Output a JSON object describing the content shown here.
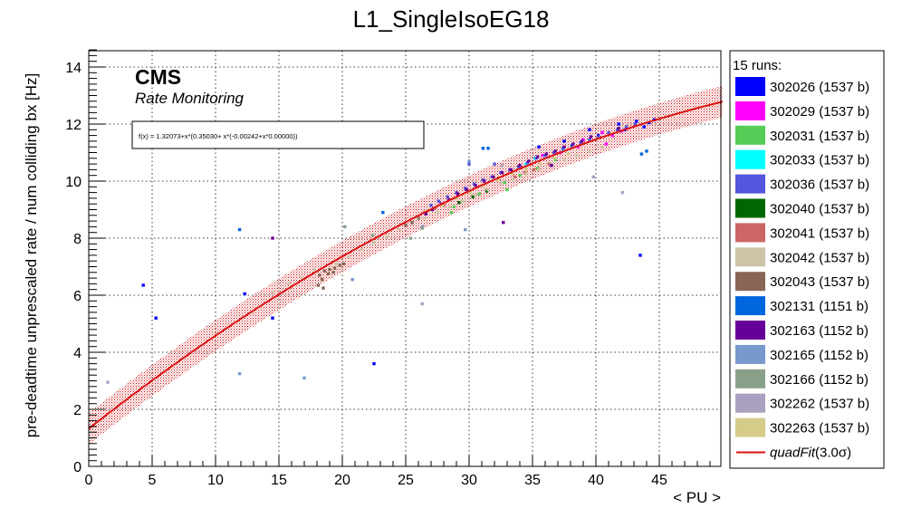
{
  "chart_data": {
    "type": "scatter",
    "title": "L1_SingleIsoEG18",
    "xlabel": "< PU >",
    "ylabel": "pre-deadtime unprescaled rate / num colliding bx [Hz]",
    "xlim": [
      0,
      50
    ],
    "ylim": [
      0,
      14.8
    ],
    "x_ticks": [
      0,
      5,
      10,
      15,
      20,
      25,
      30,
      35,
      40,
      45
    ],
    "y_ticks": [
      0,
      2,
      4,
      6,
      8,
      10,
      12,
      14
    ],
    "x_tick_labels": [
      "0",
      "5",
      "10",
      "15",
      "20",
      "25",
      "30",
      "35",
      "40",
      "45"
    ],
    "y_tick_labels": [
      "0",
      "2",
      "4",
      "6",
      "8",
      "10",
      "12",
      "14"
    ],
    "grid": true,
    "legend_position": "right",
    "annotations": {
      "cms": "CMS",
      "subtitle": "Rate Monitoring",
      "formula": "f(x) = 1.32073+x*(0.35030+ x*(-0.00242+x*0.00000))"
    },
    "legend_header": "15 runs:",
    "fit": {
      "name": "quadFit",
      "label_suffix": "(3.0σ)",
      "color": "#dd1111",
      "coefficients": [
        1.32073,
        0.3503,
        -0.00242
      ],
      "x_range": [
        0,
        50
      ],
      "band_sigma_width": 0.55
    },
    "series": [
      {
        "name": "302026 (1537 b)",
        "color": "#0000ff",
        "points": [
          [
            4.3,
            6.35
          ],
          [
            5.3,
            5.2
          ],
          [
            12.3,
            6.05
          ],
          [
            14.5,
            5.2
          ],
          [
            22.5,
            3.6
          ],
          [
            35.5,
            11.2
          ],
          [
            40.2,
            11.6
          ],
          [
            41.8,
            12.0
          ],
          [
            42.3,
            11.8
          ],
          [
            43.2,
            12.1
          ],
          [
            43.8,
            11.9
          ],
          [
            44.2,
            12.05
          ],
          [
            44.6,
            12.15
          ],
          [
            43.5,
            7.4
          ],
          [
            37.5,
            11.4
          ],
          [
            39.5,
            11.8
          ]
        ]
      },
      {
        "name": "302029 (1537 b)",
        "color": "#ff00ff",
        "points": [
          [
            38.6,
            11.2
          ],
          [
            39.6,
            11.55
          ],
          [
            40.5,
            11.7
          ],
          [
            41.3,
            11.6
          ],
          [
            42.0,
            11.75
          ],
          [
            40.8,
            11.3
          ],
          [
            39.0,
            11.45
          ],
          [
            37.2,
            11.0
          ],
          [
            35.8,
            10.9
          ]
        ]
      },
      {
        "name": "302031 (1537 b)",
        "color": "#55cc55",
        "points": [
          [
            28.8,
            9.1
          ],
          [
            29.5,
            9.3
          ],
          [
            30.8,
            9.55
          ],
          [
            32.8,
            9.95
          ],
          [
            34.0,
            10.2
          ],
          [
            35.4,
            10.45
          ],
          [
            36.8,
            10.75
          ],
          [
            33.0,
            9.7
          ],
          [
            28.6,
            8.9
          ]
        ]
      },
      {
        "name": "302033 (1537 b)",
        "color": "#00ffff",
        "points": [
          [
            34.5,
            10.6
          ],
          [
            35.2,
            10.8
          ],
          [
            36.0,
            10.9
          ],
          [
            37.4,
            11.1
          ],
          [
            38.1,
            11.25
          ]
        ]
      },
      {
        "name": "302036 (1537 b)",
        "color": "#5555dd",
        "points": [
          [
            27.0,
            9.15
          ],
          [
            27.6,
            9.3
          ],
          [
            28.3,
            9.45
          ],
          [
            29.0,
            9.6
          ],
          [
            29.7,
            9.75
          ],
          [
            30.4,
            9.9
          ],
          [
            31.1,
            10.05
          ],
          [
            31.8,
            10.15
          ],
          [
            32.5,
            10.3
          ],
          [
            33.2,
            10.4
          ],
          [
            33.9,
            10.5
          ],
          [
            34.6,
            10.65
          ],
          [
            35.3,
            10.8
          ],
          [
            36.0,
            10.9
          ],
          [
            36.7,
            11.0
          ],
          [
            37.4,
            11.15
          ],
          [
            38.1,
            11.25
          ],
          [
            38.8,
            11.35
          ],
          [
            39.5,
            11.45
          ],
          [
            40.2,
            11.55
          ],
          [
            41.0,
            11.7
          ],
          [
            41.7,
            11.8
          ],
          [
            42.4,
            11.9
          ],
          [
            43.1,
            12.0
          ],
          [
            30.0,
            10.6
          ],
          [
            32.0,
            10.6
          ]
        ]
      },
      {
        "name": "302040 (1537 b)",
        "color": "#006600",
        "points": [
          [
            29.2,
            9.25
          ],
          [
            30.3,
            9.45
          ],
          [
            31.4,
            9.65
          ]
        ]
      },
      {
        "name": "302041 (1537 b)",
        "color": "#cc6666",
        "points": [
          [
            26.5,
            8.9
          ],
          [
            27.3,
            9.05
          ],
          [
            28.0,
            9.15
          ],
          [
            33.6,
            10.15
          ],
          [
            34.4,
            10.3
          ],
          [
            35.1,
            10.4
          ],
          [
            36.3,
            10.6
          ]
        ]
      },
      {
        "name": "302042 (1537 b)",
        "color": "#ccc4a6",
        "points": [
          [
            19.5,
            7.1
          ],
          [
            20.5,
            7.35
          ],
          [
            21.5,
            7.6
          ],
          [
            22.5,
            7.85
          ],
          [
            23.5,
            8.05
          ],
          [
            24.5,
            8.3
          ],
          [
            25.5,
            8.5
          ],
          [
            26.5,
            8.7
          ],
          [
            27.5,
            8.9
          ],
          [
            28.5,
            9.1
          ],
          [
            29.5,
            9.3
          ],
          [
            30.5,
            9.5
          ],
          [
            31.5,
            9.7
          ],
          [
            32.5,
            9.9
          ],
          [
            33.5,
            10.05
          ],
          [
            34.5,
            10.25
          ],
          [
            35.5,
            10.4
          ],
          [
            36.5,
            10.6
          ],
          [
            37.5,
            10.75
          ],
          [
            38.5,
            10.9
          ],
          [
            39.5,
            11.05
          ],
          [
            40.5,
            11.2
          ],
          [
            14.5,
            6.1
          ],
          [
            15.8,
            6.4
          ],
          [
            16.8,
            6.6
          ],
          [
            17.8,
            6.9
          ]
        ]
      },
      {
        "name": "302043 (1537 b)",
        "color": "#886655",
        "points": [
          [
            18.2,
            6.7
          ],
          [
            18.6,
            6.85
          ],
          [
            19.0,
            6.9
          ],
          [
            19.4,
            6.95
          ],
          [
            19.8,
            7.05
          ],
          [
            18.4,
            6.55
          ],
          [
            18.9,
            6.75
          ],
          [
            19.3,
            6.8
          ],
          [
            18.1,
            6.35
          ],
          [
            18.5,
            6.25
          ],
          [
            20.1,
            7.1
          ],
          [
            25.0,
            8.45
          ],
          [
            25.5,
            8.55
          ],
          [
            26.0,
            8.7
          ]
        ]
      },
      {
        "name": "302131 (1151 b)",
        "color": "#0066dd",
        "points": [
          [
            11.9,
            8.3
          ],
          [
            23.2,
            8.9
          ],
          [
            31.1,
            11.15
          ],
          [
            31.5,
            11.15
          ],
          [
            43.6,
            10.95
          ],
          [
            44.0,
            11.05
          ]
        ]
      },
      {
        "name": "302163 (1152 b)",
        "color": "#660099",
        "points": [
          [
            26.6,
            8.85
          ],
          [
            27.1,
            9.0
          ],
          [
            27.8,
            9.2
          ],
          [
            28.4,
            9.35
          ],
          [
            29.1,
            9.55
          ],
          [
            29.8,
            9.7
          ],
          [
            30.5,
            9.85
          ],
          [
            31.2,
            10.0
          ],
          [
            31.9,
            10.15
          ],
          [
            32.6,
            10.3
          ],
          [
            33.3,
            10.4
          ],
          [
            34.0,
            10.55
          ],
          [
            34.7,
            10.7
          ],
          [
            35.4,
            10.85
          ],
          [
            36.1,
            10.95
          ],
          [
            36.8,
            11.05
          ],
          [
            37.5,
            11.2
          ],
          [
            38.2,
            11.3
          ],
          [
            38.9,
            11.4
          ],
          [
            39.6,
            11.55
          ],
          [
            32.7,
            8.55
          ],
          [
            14.5,
            8.0
          ],
          [
            36.5,
            10.55
          ],
          [
            41.8,
            11.85
          ]
        ]
      },
      {
        "name": "302165 (1152 b)",
        "color": "#7799cc",
        "points": [
          [
            11.9,
            3.25
          ],
          [
            17.0,
            3.1
          ],
          [
            20.8,
            6.55
          ],
          [
            26.3,
            8.4
          ],
          [
            29.7,
            8.3
          ],
          [
            30.0,
            10.7
          ]
        ]
      },
      {
        "name": "302166 (1152 b)",
        "color": "#88a088",
        "points": [
          [
            20.2,
            8.4
          ],
          [
            22.4,
            8.1
          ],
          [
            25.4,
            8.0
          ],
          [
            26.3,
            8.35
          ]
        ]
      },
      {
        "name": "302262 (1537 b)",
        "color": "#aaa0c0",
        "points": [
          [
            1.5,
            2.95
          ],
          [
            26.3,
            5.7
          ],
          [
            39.8,
            10.15
          ],
          [
            42.1,
            9.6
          ],
          [
            32.6,
            10.55
          ]
        ]
      },
      {
        "name": "302263 (1537 b)",
        "color": "#d4cc88",
        "points": [
          [
            25.8,
            8.75
          ],
          [
            26.8,
            8.95
          ],
          [
            27.9,
            9.15
          ],
          [
            29.0,
            9.4
          ],
          [
            30.1,
            9.6
          ],
          [
            31.2,
            9.85
          ],
          [
            32.3,
            10.05
          ],
          [
            33.4,
            10.25
          ],
          [
            34.5,
            10.4
          ],
          [
            35.6,
            10.6
          ],
          [
            36.7,
            10.8
          ],
          [
            37.8,
            10.95
          ]
        ]
      }
    ]
  }
}
